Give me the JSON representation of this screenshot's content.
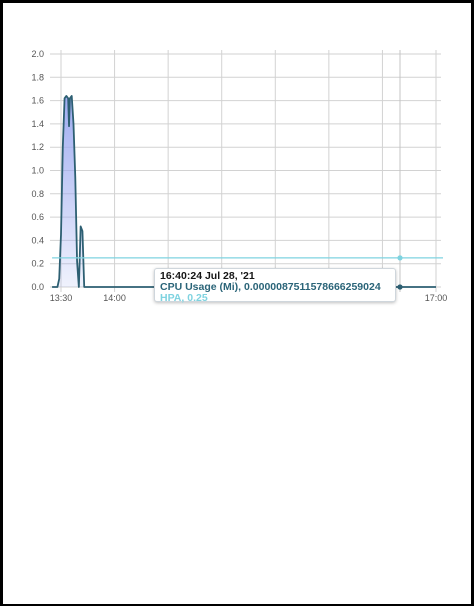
{
  "chart_data": {
    "type": "area",
    "title": "",
    "xlabel": "",
    "ylabel": "",
    "ylim": [
      0,
      2.0
    ],
    "y_ticks": [
      "0.0",
      "0.2",
      "0.4",
      "0.6",
      "0.8",
      "1.0",
      "1.2",
      "1.4",
      "1.6",
      "1.8",
      "2.0"
    ],
    "x_ticks": [
      "13:30",
      "14:00",
      "17:00"
    ],
    "grid": true,
    "series": [
      {
        "name": "CPU Usage (Mi)",
        "color": "#2d5f72",
        "fill": "#9aa8f0",
        "points": [
          [
            "13:25",
            0.0
          ],
          [
            "13:28",
            0.0
          ],
          [
            "13:29",
            0.07
          ],
          [
            "13:30",
            0.45
          ],
          [
            "13:31",
            1.2
          ],
          [
            "13:32",
            1.62
          ],
          [
            "13:33",
            1.64
          ],
          [
            "13:34",
            1.62
          ],
          [
            "13:34.5",
            1.38
          ],
          [
            "13:35",
            1.62
          ],
          [
            "13:36",
            1.64
          ],
          [
            "13:37",
            1.4
          ],
          [
            "13:38",
            0.94
          ],
          [
            "13:39",
            0.22
          ],
          [
            "13:40",
            0.0
          ],
          [
            "13:40.5",
            0.25
          ],
          [
            "13:41",
            0.52
          ],
          [
            "13:42",
            0.48
          ],
          [
            "13:43",
            0.0
          ],
          [
            "14:00",
            0.0
          ],
          [
            "17:00",
            0.0
          ]
        ]
      },
      {
        "name": "HPA",
        "color": "#7fd3e0",
        "points": [
          [
            "13:25",
            0.25
          ],
          [
            "17:00",
            0.25
          ]
        ]
      }
    ],
    "tooltip": {
      "time": "16:40:24 Jul 28, '21",
      "rows": [
        {
          "label": "CPU Usage (Mi), 0.0000087511578666259024",
          "color": "#2a6478"
        },
        {
          "label": "HPA, 0.25",
          "color": "#7fd3e0"
        }
      ]
    }
  }
}
